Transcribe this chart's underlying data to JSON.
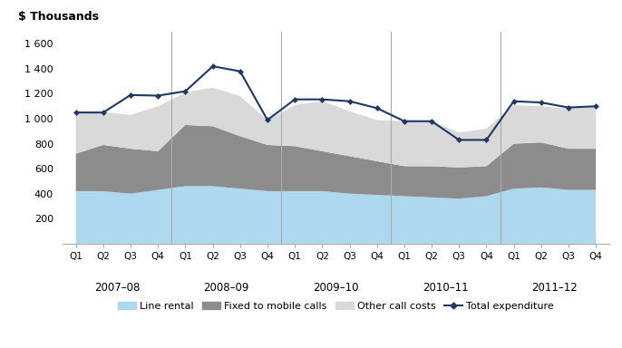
{
  "quarters": [
    "Q1",
    "Q2",
    "Q3",
    "Q4",
    "Q1",
    "Q2",
    "Q3",
    "Q4",
    "Q1",
    "Q2",
    "Q3",
    "Q4",
    "Q1",
    "Q2",
    "Q3",
    "Q4",
    "Q1",
    "Q2",
    "Q3",
    "Q4"
  ],
  "year_labels": [
    "2007–08",
    "2008–09",
    "2009–10",
    "2010–11",
    "2011–12"
  ],
  "year_group_centers": [
    1.5,
    5.5,
    9.5,
    13.5,
    17.5
  ],
  "year_separators": [
    3.5,
    7.5,
    11.5,
    15.5
  ],
  "line_rental": [
    420,
    420,
    400,
    430,
    460,
    460,
    440,
    420,
    420,
    420,
    400,
    390,
    380,
    370,
    360,
    380,
    440,
    450,
    430,
    430
  ],
  "fixed_to_mobile": [
    300,
    370,
    360,
    310,
    490,
    480,
    420,
    370,
    360,
    320,
    300,
    270,
    240,
    250,
    250,
    240,
    360,
    360,
    330,
    330
  ],
  "other_call_costs": [
    330,
    265,
    270,
    360,
    260,
    310,
    320,
    200,
    330,
    400,
    360,
    330,
    360,
    360,
    280,
    300,
    310,
    290,
    320,
    340
  ],
  "total_expenditure": [
    1050,
    1050,
    1190,
    1185,
    1220,
    1420,
    1380,
    990,
    1155,
    1155,
    1140,
    1085,
    980,
    980,
    830,
    830,
    1140,
    1130,
    1090,
    1100
  ],
  "ylabel_title": "$ Thousands",
  "ylim": [
    0,
    1700
  ],
  "yticks": [
    200,
    400,
    600,
    800,
    1000,
    1200,
    1400,
    1600
  ],
  "ytick_labels": [
    "200",
    "400",
    "600",
    "800",
    "1 000",
    "1 200",
    "1 400",
    "1 600"
  ],
  "line_rental_color": "#aed8f0",
  "fixed_to_mobile_color": "#8c8c8c",
  "other_call_costs_color": "#d9d9d9",
  "total_expenditure_color": "#1f3864",
  "separator_color": "#aaaaaa",
  "background_color": "#ffffff",
  "legend_line_rental": "Line rental",
  "legend_fixed_to_mobile": "Fixed to mobile calls",
  "legend_other_call_costs": "Other call costs",
  "legend_total_expenditure": "Total expenditure"
}
